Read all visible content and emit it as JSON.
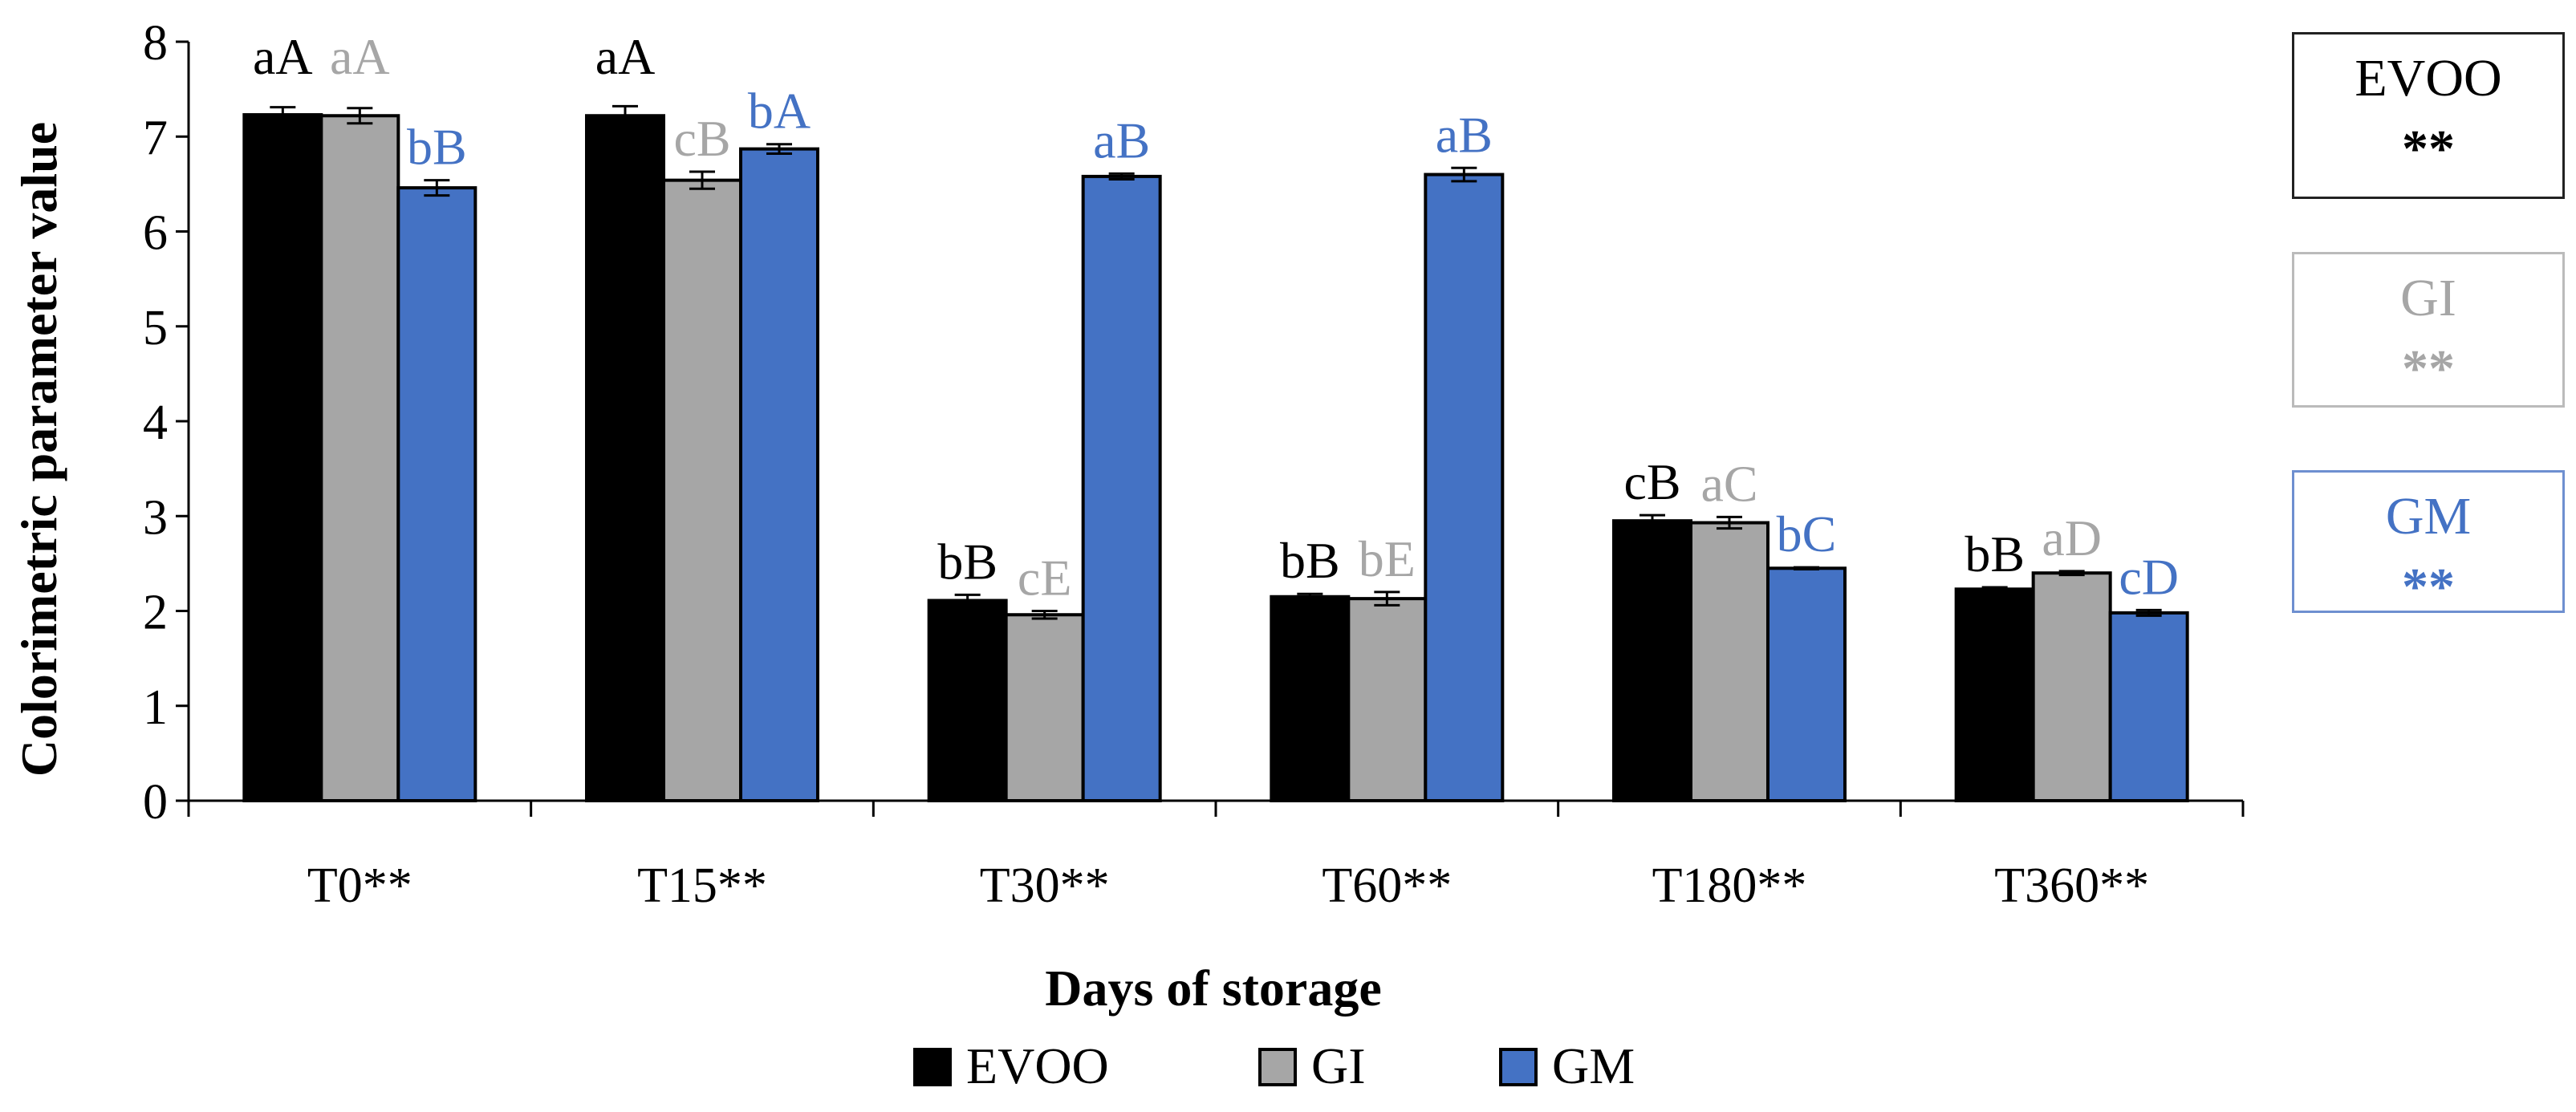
{
  "chart_data": {
    "type": "bar",
    "xlabel": "Days of storage",
    "ylabel": "Colorimetric parameter value",
    "ylim": [
      0,
      8
    ],
    "yticks": [
      "0",
      "1",
      "2",
      "3",
      "4",
      "5",
      "6",
      "7",
      "8"
    ],
    "categories": [
      "T0**",
      "T15**",
      "T30**",
      "T60**",
      "T180**",
      "T360**"
    ],
    "series": [
      {
        "name": "EVOO",
        "color": "#000000",
        "label_color": "#000000",
        "values": [
          7.23,
          7.22,
          2.11,
          2.15,
          2.95,
          2.23
        ],
        "errors": [
          0.08,
          0.1,
          0.06,
          0.03,
          0.06,
          0.02
        ],
        "letters": [
          "aA",
          "aA",
          "bB",
          "bB",
          "cB",
          "bB"
        ]
      },
      {
        "name": "GI",
        "color": "#a6a6a6",
        "label_color": "#a6a6a6",
        "values": [
          7.22,
          6.54,
          1.96,
          2.13,
          2.93,
          2.4
        ],
        "errors": [
          0.08,
          0.09,
          0.04,
          0.07,
          0.06,
          0.02
        ],
        "letters": [
          "aA",
          "cB",
          "cE",
          "bE",
          "aC",
          "aD"
        ]
      },
      {
        "name": "GM",
        "color": "#4472c4",
        "label_color": "#4472c4",
        "values": [
          6.46,
          6.87,
          6.58,
          6.6,
          2.45,
          1.98
        ],
        "errors": [
          0.08,
          0.05,
          0.03,
          0.07,
          0.01,
          0.03
        ],
        "letters": [
          "bB",
          "bA",
          "aB",
          "aB",
          "bC",
          "cD"
        ]
      }
    ],
    "legend": {
      "position": "bottom",
      "items": [
        "EVOO",
        "GI",
        "GM"
      ]
    },
    "side_boxes": [
      {
        "name": "EVOO",
        "stars": "**",
        "color": "#000000"
      },
      {
        "name": "GI",
        "stars": "**",
        "color": "#a6a6a6"
      },
      {
        "name": "GM",
        "stars": "**",
        "color": "#4472c4"
      }
    ]
  }
}
